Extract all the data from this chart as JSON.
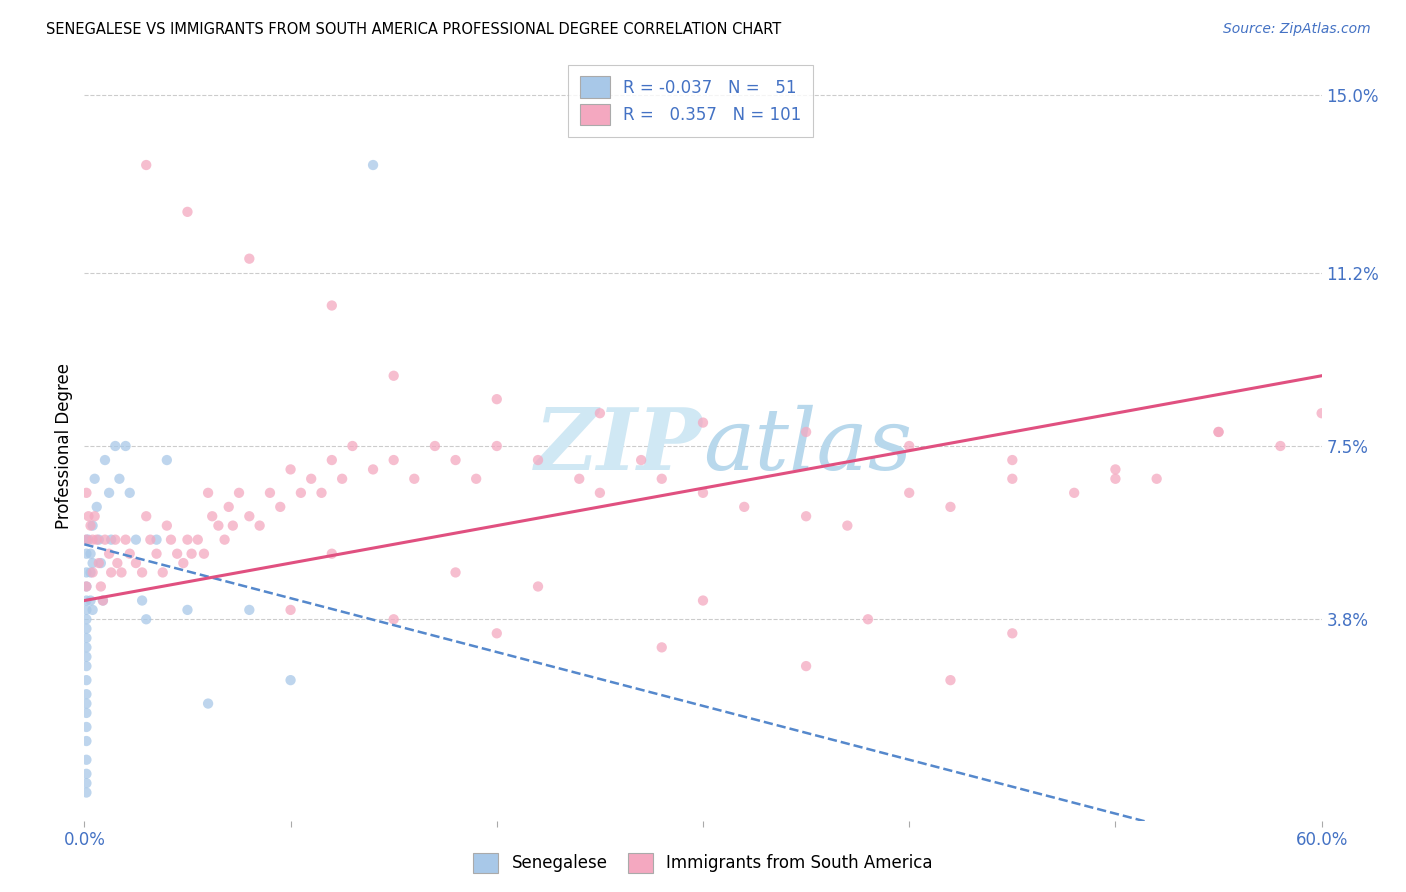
{
  "title": "SENEGALESE VS IMMIGRANTS FROM SOUTH AMERICA PROFESSIONAL DEGREE CORRELATION CHART",
  "source": "Source: ZipAtlas.com",
  "ylabel": "Professional Degree",
  "x_min": 0.0,
  "x_max": 0.6,
  "y_min": -0.005,
  "y_max": 0.155,
  "color_senegalese": "#a8c8e8",
  "color_south_america": "#f4a8c0",
  "color_line_senegalese": "#5588cc",
  "color_line_south_america": "#e05080",
  "color_text_blue": "#4472c4",
  "background_color": "#ffffff",
  "watermark_color": "#d0e8f4",
  "senegalese_x": [
    0.001,
    0.001,
    0.001,
    0.001,
    0.001,
    0.001,
    0.001,
    0.001,
    0.001,
    0.001,
    0.001,
    0.001,
    0.001,
    0.001,
    0.001,
    0.001,
    0.001,
    0.001,
    0.001,
    0.001,
    0.001,
    0.001,
    0.002,
    0.003,
    0.003,
    0.003,
    0.004,
    0.004,
    0.004,
    0.005,
    0.006,
    0.007,
    0.008,
    0.009,
    0.01,
    0.012,
    0.013,
    0.015,
    0.017,
    0.02,
    0.022,
    0.025,
    0.028,
    0.03,
    0.035,
    0.04,
    0.05,
    0.06,
    0.08,
    0.1,
    0.14
  ],
  "senegalese_y": [
    0.055,
    0.052,
    0.048,
    0.045,
    0.042,
    0.04,
    0.038,
    0.036,
    0.034,
    0.032,
    0.03,
    0.028,
    0.025,
    0.022,
    0.02,
    0.018,
    0.015,
    0.012,
    0.008,
    0.005,
    0.003,
    0.001,
    0.055,
    0.052,
    0.048,
    0.042,
    0.058,
    0.05,
    0.04,
    0.068,
    0.062,
    0.055,
    0.05,
    0.042,
    0.072,
    0.065,
    0.055,
    0.075,
    0.068,
    0.075,
    0.065,
    0.055,
    0.042,
    0.038,
    0.055,
    0.072,
    0.04,
    0.02,
    0.04,
    0.025,
    0.135
  ],
  "south_america_x": [
    0.001,
    0.001,
    0.001,
    0.002,
    0.003,
    0.004,
    0.004,
    0.005,
    0.006,
    0.007,
    0.008,
    0.009,
    0.01,
    0.012,
    0.013,
    0.015,
    0.016,
    0.018,
    0.02,
    0.022,
    0.025,
    0.028,
    0.03,
    0.032,
    0.035,
    0.038,
    0.04,
    0.042,
    0.045,
    0.048,
    0.05,
    0.052,
    0.055,
    0.058,
    0.06,
    0.062,
    0.065,
    0.068,
    0.07,
    0.072,
    0.075,
    0.08,
    0.085,
    0.09,
    0.095,
    0.1,
    0.105,
    0.11,
    0.115,
    0.12,
    0.125,
    0.13,
    0.14,
    0.15,
    0.16,
    0.17,
    0.18,
    0.19,
    0.2,
    0.22,
    0.24,
    0.25,
    0.27,
    0.28,
    0.3,
    0.32,
    0.35,
    0.37,
    0.4,
    0.42,
    0.45,
    0.48,
    0.5,
    0.52,
    0.55,
    0.58,
    0.6,
    0.03,
    0.05,
    0.08,
    0.12,
    0.15,
    0.2,
    0.25,
    0.3,
    0.35,
    0.4,
    0.45,
    0.5,
    0.55,
    0.1,
    0.15,
    0.2,
    0.28,
    0.35,
    0.42,
    0.12,
    0.18,
    0.22,
    0.3,
    0.38,
    0.45
  ],
  "south_america_y": [
    0.065,
    0.055,
    0.045,
    0.06,
    0.058,
    0.055,
    0.048,
    0.06,
    0.055,
    0.05,
    0.045,
    0.042,
    0.055,
    0.052,
    0.048,
    0.055,
    0.05,
    0.048,
    0.055,
    0.052,
    0.05,
    0.048,
    0.06,
    0.055,
    0.052,
    0.048,
    0.058,
    0.055,
    0.052,
    0.05,
    0.055,
    0.052,
    0.055,
    0.052,
    0.065,
    0.06,
    0.058,
    0.055,
    0.062,
    0.058,
    0.065,
    0.06,
    0.058,
    0.065,
    0.062,
    0.07,
    0.065,
    0.068,
    0.065,
    0.072,
    0.068,
    0.075,
    0.07,
    0.072,
    0.068,
    0.075,
    0.072,
    0.068,
    0.075,
    0.072,
    0.068,
    0.065,
    0.072,
    0.068,
    0.065,
    0.062,
    0.06,
    0.058,
    0.065,
    0.062,
    0.068,
    0.065,
    0.07,
    0.068,
    0.078,
    0.075,
    0.082,
    0.135,
    0.125,
    0.115,
    0.105,
    0.09,
    0.085,
    0.082,
    0.08,
    0.078,
    0.075,
    0.072,
    0.068,
    0.078,
    0.04,
    0.038,
    0.035,
    0.032,
    0.028,
    0.025,
    0.052,
    0.048,
    0.045,
    0.042,
    0.038,
    0.035
  ]
}
